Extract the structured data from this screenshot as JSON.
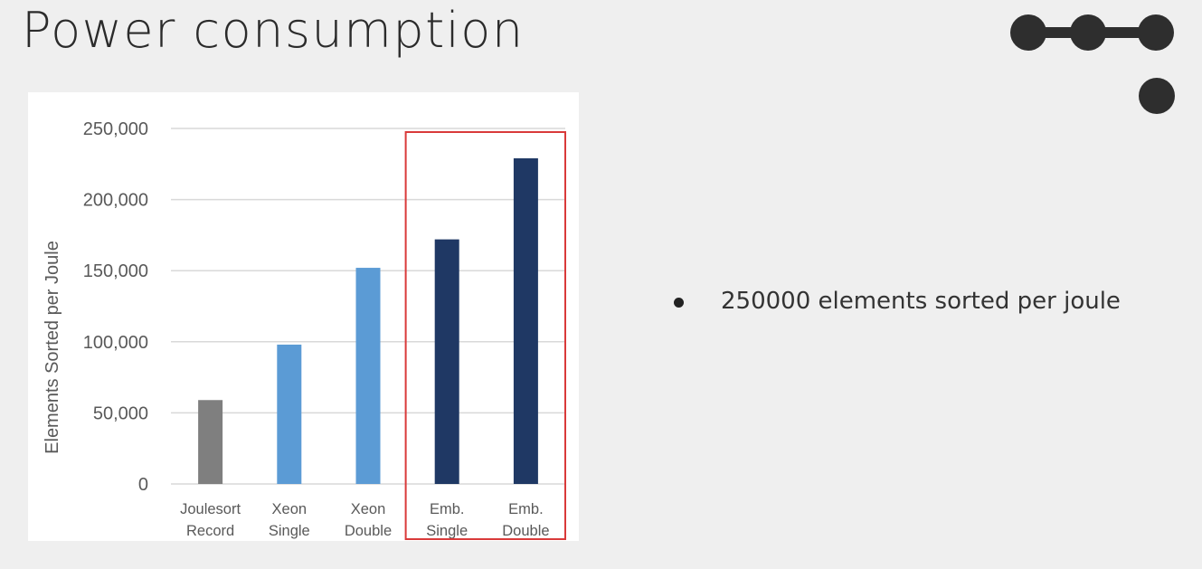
{
  "slide": {
    "title": "Power consumption",
    "bullets": [
      "250000 elements sorted per joule"
    ]
  },
  "chart_data": {
    "type": "bar",
    "categories": [
      [
        "Joulesort",
        "Record"
      ],
      [
        "Xeon",
        "Single"
      ],
      [
        "Xeon",
        "Double"
      ],
      [
        "Emb.",
        "Single"
      ],
      [
        "Emb.",
        "Double"
      ]
    ],
    "values": [
      59000,
      98000,
      152000,
      172000,
      229000
    ],
    "bar_colors": [
      "#7f7f7f",
      "#5b9bd5",
      "#5b9bd5",
      "#1f3864",
      "#1f3864"
    ],
    "ylabel": "Elements Sorted per Joule",
    "ylim": [
      0,
      250000
    ],
    "yticks": [
      0,
      50000,
      100000,
      150000,
      200000,
      250000
    ],
    "ytick_labels": [
      "0",
      "50,000",
      "100,000",
      "150,000",
      "200,000",
      "250,000"
    ],
    "grid": true,
    "highlight": {
      "categories": [
        3,
        4
      ],
      "color": "#d93a3a"
    }
  },
  "colors": {
    "title": "#2b2b2b",
    "text": "#333333",
    "decoration": "#2e2e2e"
  }
}
